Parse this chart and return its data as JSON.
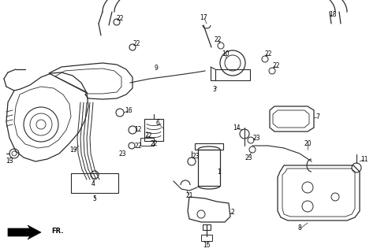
{
  "bg_color": "#ffffff",
  "line_color": "#2a2a2a",
  "text_color": "#000000",
  "fig_w": 4.78,
  "fig_h": 3.2,
  "dpi": 100
}
